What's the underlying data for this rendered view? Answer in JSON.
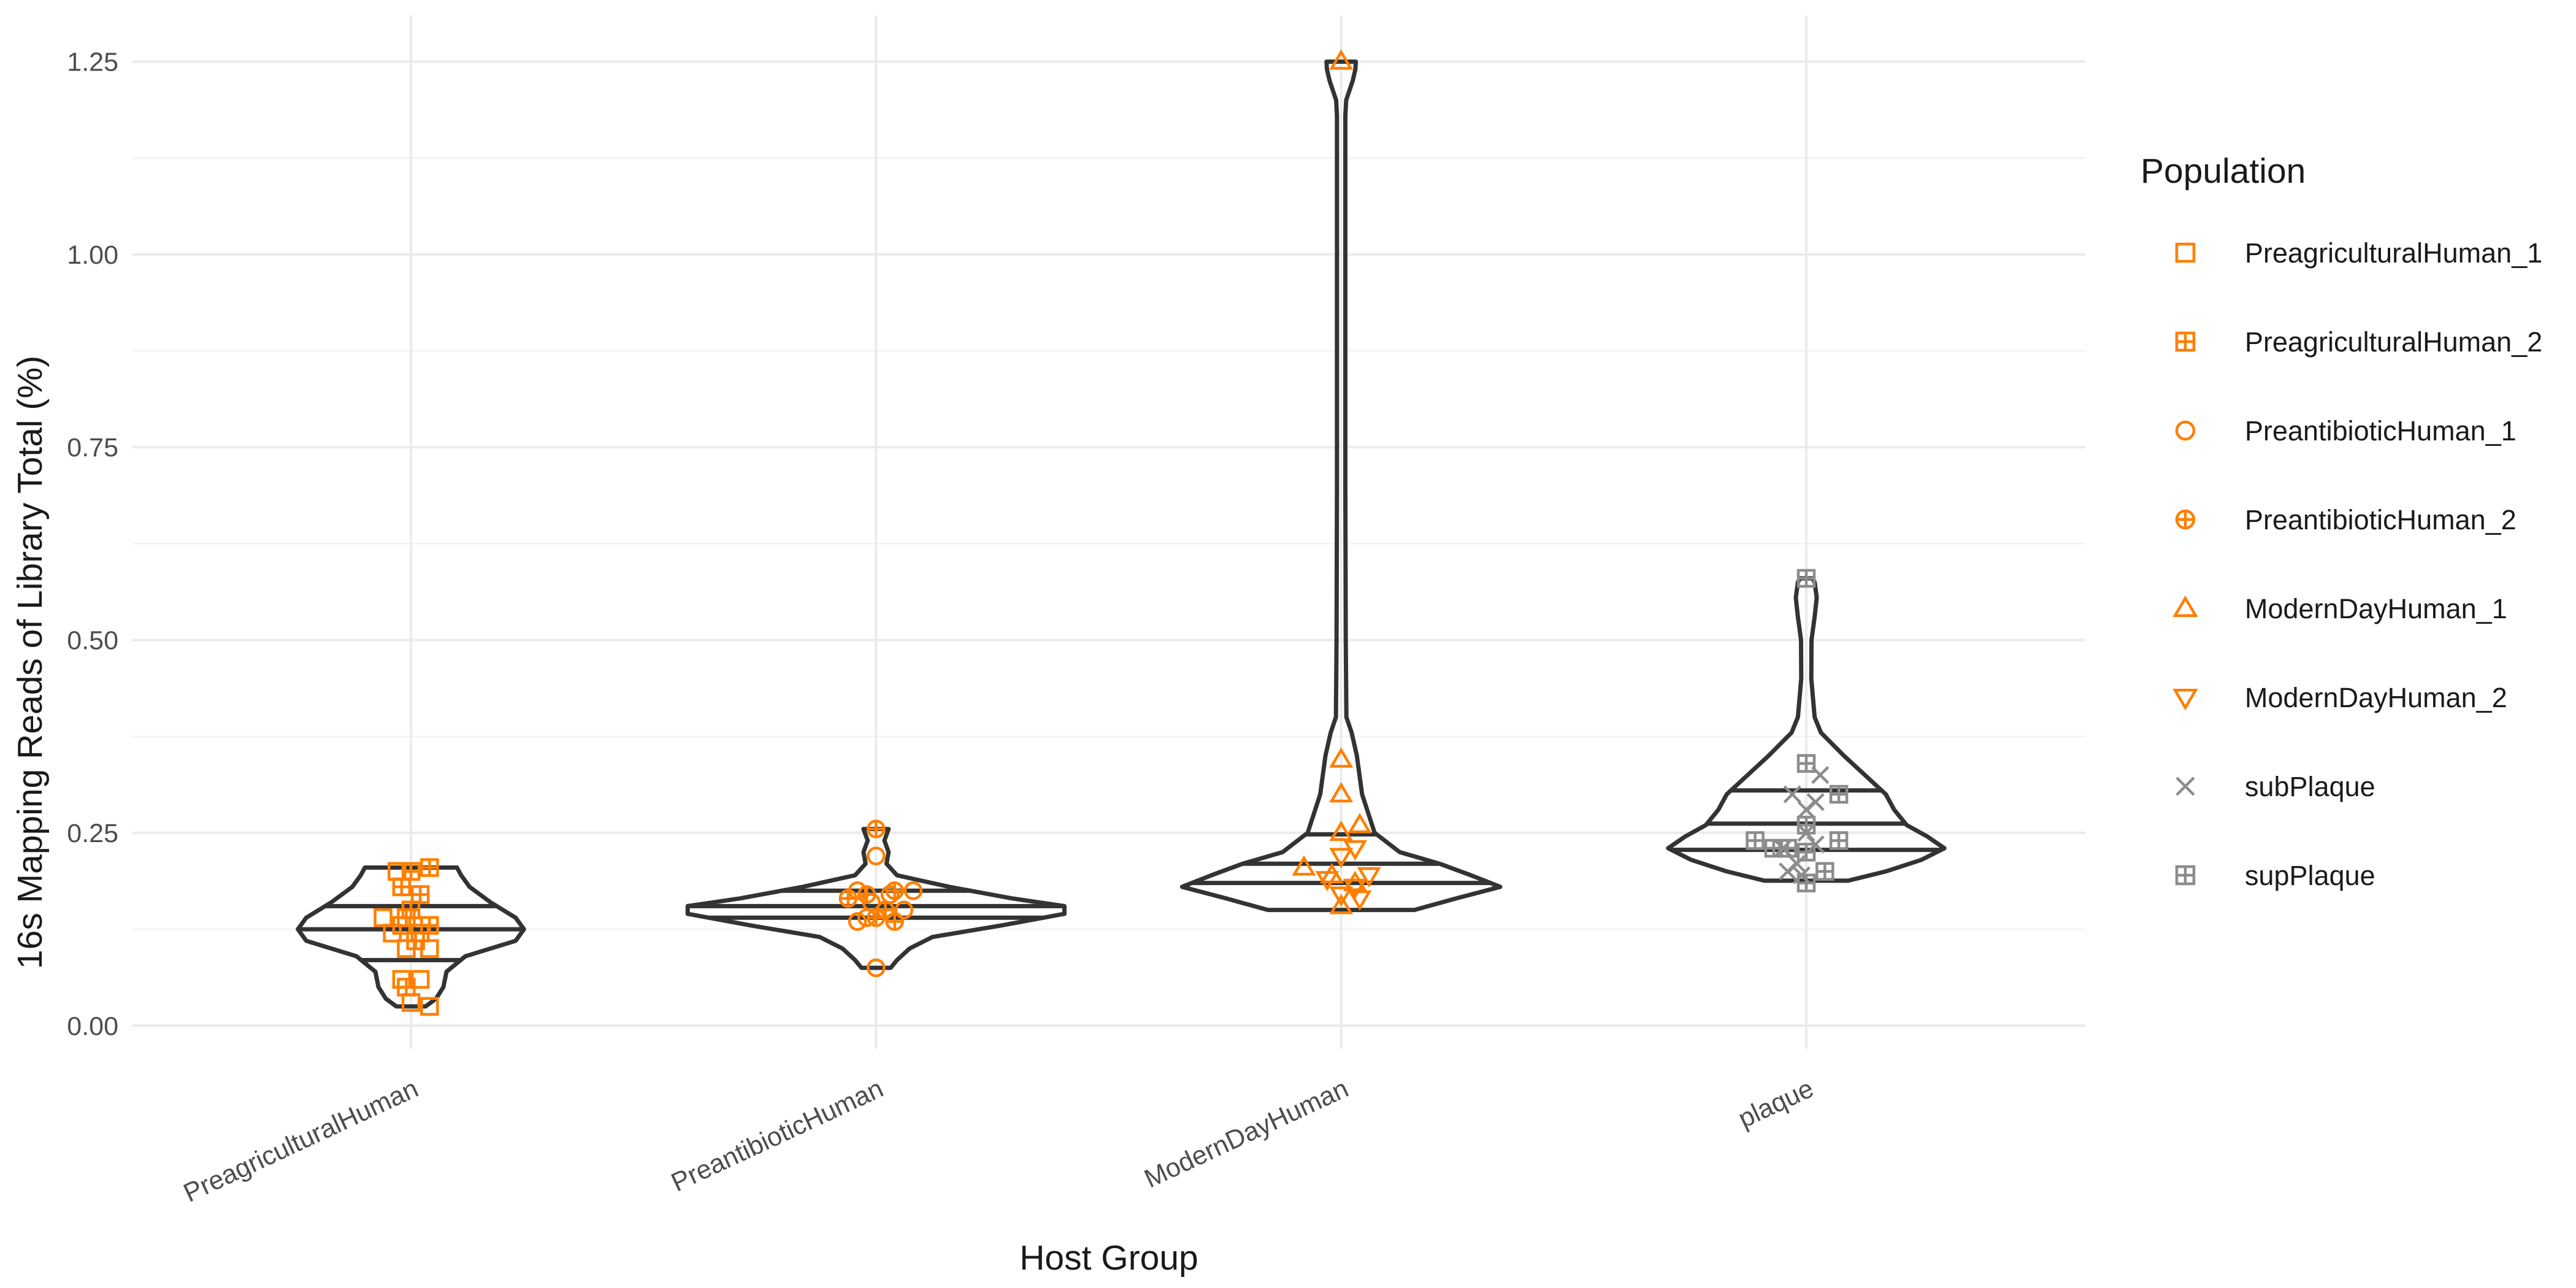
{
  "chart_data": {
    "type": "violin",
    "title": "",
    "xlabel": "Host Group",
    "ylabel": "16s Mapping Reads of Library Total (%)",
    "ylim": [
      -0.03,
      1.31
    ],
    "yticks": [
      "0.00",
      "0.25",
      "0.50",
      "0.75",
      "1.00",
      "1.25"
    ],
    "categories": [
      "PreagriculturalHuman",
      "PreantibioticHuman",
      "ModernDayHuman",
      "plaque"
    ],
    "grid": true,
    "legend": {
      "title": "Population",
      "position": "right"
    },
    "colors": {
      "human": "#ff7f00",
      "plaque": "#8c8c8c",
      "violin": "#333333",
      "grid": "#ebebeb"
    },
    "violins": [
      {
        "category": "PreagriculturalHuman",
        "quantiles": [
          0.085,
          0.125,
          0.155
        ],
        "profile": [
          [
            0.025,
            0.07
          ],
          [
            0.035,
            0.12
          ],
          [
            0.05,
            0.155
          ],
          [
            0.07,
            0.17
          ],
          [
            0.09,
            0.26
          ],
          [
            0.11,
            0.5
          ],
          [
            0.125,
            0.54
          ],
          [
            0.14,
            0.5
          ],
          [
            0.16,
            0.38
          ],
          [
            0.18,
            0.28
          ],
          [
            0.195,
            0.24
          ],
          [
            0.205,
            0.22
          ]
        ]
      },
      {
        "category": "PreantibioticHuman",
        "quantiles": [
          0.14,
          0.155,
          0.175
        ],
        "profile": [
          [
            0.075,
            0.07
          ],
          [
            0.085,
            0.1
          ],
          [
            0.1,
            0.16
          ],
          [
            0.115,
            0.27
          ],
          [
            0.13,
            0.6
          ],
          [
            0.145,
            0.9
          ],
          [
            0.155,
            0.9
          ],
          [
            0.165,
            0.65
          ],
          [
            0.18,
            0.35
          ],
          [
            0.195,
            0.1
          ],
          [
            0.21,
            0.05
          ],
          [
            0.225,
            0.06
          ],
          [
            0.24,
            0.04
          ],
          [
            0.255,
            0.06
          ]
        ]
      },
      {
        "category": "ModernDayHuman",
        "quantiles": [
          0.185,
          0.21,
          0.248
        ],
        "profile": [
          [
            0.15,
            0.35
          ],
          [
            0.165,
            0.55
          ],
          [
            0.18,
            0.76
          ],
          [
            0.195,
            0.62
          ],
          [
            0.21,
            0.47
          ],
          [
            0.225,
            0.28
          ],
          [
            0.25,
            0.16
          ],
          [
            0.3,
            0.1
          ],
          [
            0.35,
            0.075
          ],
          [
            0.38,
            0.05
          ],
          [
            0.4,
            0.025
          ],
          [
            0.5,
            0.022
          ],
          [
            0.7,
            0.02
          ],
          [
            1.0,
            0.02
          ],
          [
            1.18,
            0.02
          ],
          [
            1.2,
            0.024
          ],
          [
            1.225,
            0.055
          ],
          [
            1.24,
            0.068
          ],
          [
            1.25,
            0.07
          ]
        ]
      },
      {
        "category": "plaque",
        "quantiles": [
          0.228,
          0.262,
          0.305
        ],
        "profile": [
          [
            0.188,
            0.2
          ],
          [
            0.2,
            0.38
          ],
          [
            0.215,
            0.55
          ],
          [
            0.23,
            0.66
          ],
          [
            0.245,
            0.58
          ],
          [
            0.26,
            0.48
          ],
          [
            0.28,
            0.42
          ],
          [
            0.3,
            0.38
          ],
          [
            0.32,
            0.3
          ],
          [
            0.35,
            0.18
          ],
          [
            0.38,
            0.07
          ],
          [
            0.4,
            0.04
          ],
          [
            0.45,
            0.024
          ],
          [
            0.5,
            0.025
          ],
          [
            0.53,
            0.04
          ],
          [
            0.555,
            0.05
          ],
          [
            0.575,
            0.04
          ],
          [
            0.58,
            0.03
          ]
        ]
      }
    ],
    "series": [
      {
        "name": "PreagriculturalHuman_1",
        "shape": "square",
        "color": "#ff7f00",
        "points": [
          {
            "cat": "PreagriculturalHuman",
            "dx": -0.03,
            "y": 0.2
          },
          {
            "cat": "PreagriculturalHuman",
            "dx": -0.06,
            "y": 0.14
          },
          {
            "cat": "PreagriculturalHuman",
            "dx": -0.02,
            "y": 0.13
          },
          {
            "cat": "PreagriculturalHuman",
            "dx": 0.02,
            "y": 0.12
          },
          {
            "cat": "PreagriculturalHuman",
            "dx": 0.04,
            "y": 0.1
          },
          {
            "cat": "PreagriculturalHuman",
            "dx": -0.01,
            "y": 0.1
          },
          {
            "cat": "PreagriculturalHuman",
            "dx": -0.02,
            "y": 0.06
          },
          {
            "cat": "PreagriculturalHuman",
            "dx": 0.02,
            "y": 0.06
          },
          {
            "cat": "PreagriculturalHuman",
            "dx": 0.04,
            "y": 0.025
          },
          {
            "cat": "PreagriculturalHuman",
            "dx": 0.0,
            "y": 0.03
          },
          {
            "cat": "PreagriculturalHuman",
            "dx": -0.04,
            "y": 0.12
          }
        ]
      },
      {
        "name": "PreagriculturalHuman_2",
        "shape": "square-plus",
        "color": "#ff7f00",
        "points": [
          {
            "cat": "PreagriculturalHuman",
            "dx": 0.04,
            "y": 0.205
          },
          {
            "cat": "PreagriculturalHuman",
            "dx": 0.0,
            "y": 0.2
          },
          {
            "cat": "PreagriculturalHuman",
            "dx": -0.02,
            "y": 0.18
          },
          {
            "cat": "PreagriculturalHuman",
            "dx": 0.02,
            "y": 0.17
          },
          {
            "cat": "PreagriculturalHuman",
            "dx": 0.0,
            "y": 0.15
          },
          {
            "cat": "PreagriculturalHuman",
            "dx": -0.01,
            "y": 0.14
          },
          {
            "cat": "PreagriculturalHuman",
            "dx": 0.04,
            "y": 0.13
          },
          {
            "cat": "PreagriculturalHuman",
            "dx": 0.01,
            "y": 0.11
          },
          {
            "cat": "PreagriculturalHuman",
            "dx": -0.01,
            "y": 0.05
          }
        ]
      },
      {
        "name": "PreantibioticHuman_1",
        "shape": "circle",
        "color": "#ff7f00",
        "points": [
          {
            "cat": "PreantibioticHuman",
            "dx": 0.0,
            "y": 0.22
          },
          {
            "cat": "PreantibioticHuman",
            "dx": -0.04,
            "y": 0.175
          },
          {
            "cat": "PreantibioticHuman",
            "dx": 0.08,
            "y": 0.175
          },
          {
            "cat": "PreantibioticHuman",
            "dx": 0.03,
            "y": 0.17
          },
          {
            "cat": "PreantibioticHuman",
            "dx": -0.01,
            "y": 0.16
          },
          {
            "cat": "PreantibioticHuman",
            "dx": 0.06,
            "y": 0.15
          },
          {
            "cat": "PreantibioticHuman",
            "dx": -0.02,
            "y": 0.14
          },
          {
            "cat": "PreantibioticHuman",
            "dx": -0.04,
            "y": 0.135
          },
          {
            "cat": "PreantibioticHuman",
            "dx": 0.0,
            "y": 0.075
          }
        ]
      },
      {
        "name": "PreantibioticHuman_2",
        "shape": "circle-plus",
        "color": "#ff7f00",
        "points": [
          {
            "cat": "PreantibioticHuman",
            "dx": 0.0,
            "y": 0.255
          },
          {
            "cat": "PreantibioticHuman",
            "dx": -0.02,
            "y": 0.17
          },
          {
            "cat": "PreantibioticHuman",
            "dx": 0.04,
            "y": 0.175
          },
          {
            "cat": "PreantibioticHuman",
            "dx": -0.06,
            "y": 0.165
          },
          {
            "cat": "PreantibioticHuman",
            "dx": 0.02,
            "y": 0.15
          },
          {
            "cat": "PreantibioticHuman",
            "dx": 0.0,
            "y": 0.14
          },
          {
            "cat": "PreantibioticHuman",
            "dx": 0.04,
            "y": 0.135
          }
        ]
      },
      {
        "name": "ModernDayHuman_1",
        "shape": "triangle-up",
        "color": "#ff7f00",
        "points": [
          {
            "cat": "ModernDayHuman",
            "dx": 0.0,
            "y": 1.25
          },
          {
            "cat": "ModernDayHuman",
            "dx": 0.0,
            "y": 0.345
          },
          {
            "cat": "ModernDayHuman",
            "dx": 0.0,
            "y": 0.3
          },
          {
            "cat": "ModernDayHuman",
            "dx": 0.04,
            "y": 0.26
          },
          {
            "cat": "ModernDayHuman",
            "dx": 0.0,
            "y": 0.25
          },
          {
            "cat": "ModernDayHuman",
            "dx": -0.08,
            "y": 0.205
          },
          {
            "cat": "ModernDayHuman",
            "dx": -0.02,
            "y": 0.195
          },
          {
            "cat": "ModernDayHuman",
            "dx": 0.03,
            "y": 0.185
          },
          {
            "cat": "ModernDayHuman",
            "dx": 0.0,
            "y": 0.155
          }
        ]
      },
      {
        "name": "ModernDayHuman_2",
        "shape": "triangle-down",
        "color": "#ff7f00",
        "points": [
          {
            "cat": "ModernDayHuman",
            "dx": 0.03,
            "y": 0.23
          },
          {
            "cat": "ModernDayHuman",
            "dx": 0.0,
            "y": 0.22
          },
          {
            "cat": "ModernDayHuman",
            "dx": 0.06,
            "y": 0.195
          },
          {
            "cat": "ModernDayHuman",
            "dx": -0.03,
            "y": 0.19
          },
          {
            "cat": "ModernDayHuman",
            "dx": 0.03,
            "y": 0.18
          },
          {
            "cat": "ModernDayHuman",
            "dx": 0.0,
            "y": 0.17
          },
          {
            "cat": "ModernDayHuman",
            "dx": 0.04,
            "y": 0.165
          }
        ]
      },
      {
        "name": "subPlaque",
        "shape": "cross",
        "color": "#8c8c8c",
        "points": [
          {
            "cat": "plaque",
            "dx": 0.03,
            "y": 0.325
          },
          {
            "cat": "plaque",
            "dx": -0.03,
            "y": 0.3
          },
          {
            "cat": "plaque",
            "dx": 0.02,
            "y": 0.29
          },
          {
            "cat": "plaque",
            "dx": 0.0,
            "y": 0.28
          },
          {
            "cat": "plaque",
            "dx": 0.0,
            "y": 0.25
          },
          {
            "cat": "plaque",
            "dx": 0.02,
            "y": 0.235
          },
          {
            "cat": "plaque",
            "dx": -0.05,
            "y": 0.23
          },
          {
            "cat": "plaque",
            "dx": -0.02,
            "y": 0.21
          },
          {
            "cat": "plaque",
            "dx": -0.04,
            "y": 0.2
          },
          {
            "cat": "plaque",
            "dx": -0.01,
            "y": 0.195
          }
        ]
      },
      {
        "name": "supPlaque",
        "shape": "square-plus",
        "color": "#8c8c8c",
        "points": [
          {
            "cat": "plaque",
            "dx": 0.0,
            "y": 0.58
          },
          {
            "cat": "plaque",
            "dx": 0.0,
            "y": 0.34
          },
          {
            "cat": "plaque",
            "dx": 0.07,
            "y": 0.3
          },
          {
            "cat": "plaque",
            "dx": 0.0,
            "y": 0.26
          },
          {
            "cat": "plaque",
            "dx": -0.11,
            "y": 0.24
          },
          {
            "cat": "plaque",
            "dx": 0.07,
            "y": 0.24
          },
          {
            "cat": "plaque",
            "dx": -0.07,
            "y": 0.23
          },
          {
            "cat": "plaque",
            "dx": -0.04,
            "y": 0.23
          },
          {
            "cat": "plaque",
            "dx": 0.0,
            "y": 0.225
          },
          {
            "cat": "plaque",
            "dx": 0.04,
            "y": 0.2
          },
          {
            "cat": "plaque",
            "dx": 0.0,
            "y": 0.185
          }
        ]
      }
    ]
  }
}
